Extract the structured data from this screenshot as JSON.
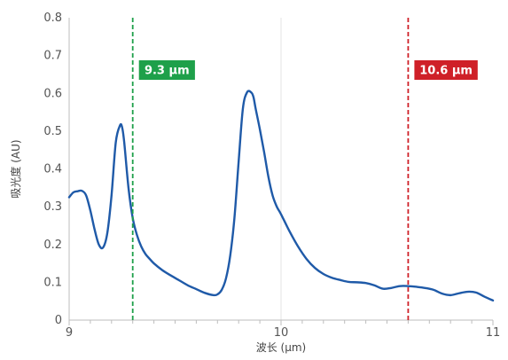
{
  "chart_data": {
    "type": "line",
    "title": "",
    "xlabel": "波长 (µm)",
    "ylabel": "吸光度 (AU)",
    "xlim": [
      9,
      11
    ],
    "ylim": [
      0,
      0.8
    ],
    "x_ticks": [
      "9",
      "10",
      "11"
    ],
    "y_ticks": [
      "0",
      "0.1",
      "0.2",
      "0.3",
      "0.4",
      "0.5",
      "0.6",
      "0.7",
      "0.8"
    ],
    "grid": "vertical-at-10",
    "legend": "none",
    "series": [
      {
        "color": "#1f5aa8",
        "x": [
          9.0,
          9.02,
          9.04,
          9.06,
          9.08,
          9.1,
          9.12,
          9.14,
          9.16,
          9.18,
          9.2,
          9.22,
          9.24,
          9.25,
          9.26,
          9.28,
          9.3,
          9.32,
          9.34,
          9.36,
          9.38,
          9.4,
          9.44,
          9.48,
          9.52,
          9.56,
          9.6,
          9.64,
          9.68,
          9.7,
          9.72,
          9.74,
          9.76,
          9.78,
          9.8,
          9.82,
          9.84,
          9.86,
          9.87,
          9.88,
          9.9,
          9.92,
          9.94,
          9.96,
          9.98,
          10.0,
          10.04,
          10.08,
          10.12,
          10.16,
          10.2,
          10.24,
          10.28,
          10.32,
          10.36,
          10.4,
          10.44,
          10.48,
          10.52,
          10.56,
          10.6,
          10.64,
          10.68,
          10.72,
          10.76,
          10.8,
          10.84,
          10.88,
          10.92,
          10.96,
          11.0
        ],
        "y": [
          0.325,
          0.338,
          0.341,
          0.342,
          0.33,
          0.29,
          0.24,
          0.2,
          0.192,
          0.23,
          0.33,
          0.47,
          0.515,
          0.51,
          0.47,
          0.35,
          0.27,
          0.225,
          0.195,
          0.175,
          0.162,
          0.15,
          0.132,
          0.118,
          0.105,
          0.092,
          0.082,
          0.072,
          0.066,
          0.068,
          0.08,
          0.11,
          0.17,
          0.27,
          0.42,
          0.56,
          0.603,
          0.602,
          0.59,
          0.56,
          0.505,
          0.445,
          0.38,
          0.33,
          0.3,
          0.28,
          0.235,
          0.195,
          0.162,
          0.138,
          0.122,
          0.112,
          0.106,
          0.101,
          0.1,
          0.098,
          0.092,
          0.083,
          0.085,
          0.09,
          0.09,
          0.088,
          0.085,
          0.08,
          0.07,
          0.066,
          0.071,
          0.075,
          0.073,
          0.062,
          0.052
        ]
      }
    ],
    "markers": [
      {
        "x": 9.3,
        "label": "9.3 µm",
        "color": "#1ea04a"
      },
      {
        "x": 10.6,
        "label": "10.6 µm",
        "color": "#cf2028"
      }
    ]
  }
}
